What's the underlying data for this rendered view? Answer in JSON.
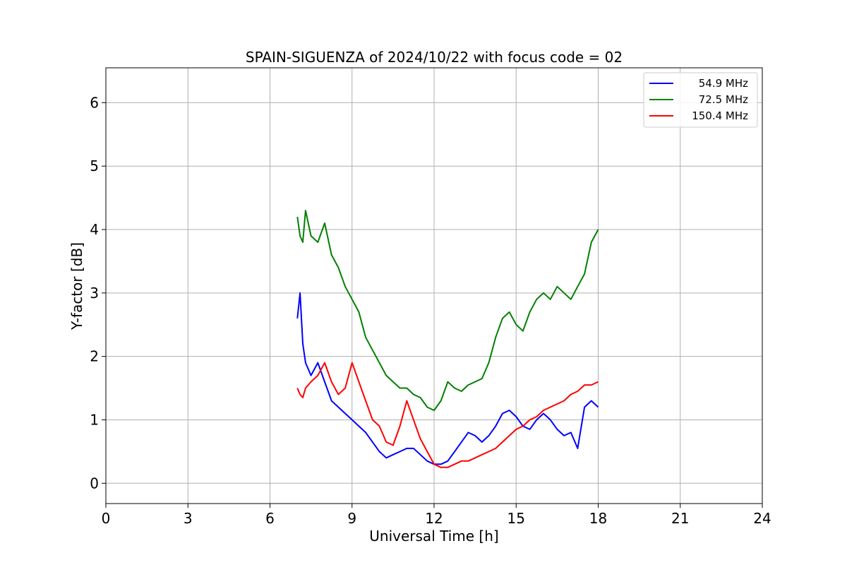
{
  "chart_data": {
    "type": "line",
    "title": "SPAIN-SIGUENZA of 2024/10/22 with focus code = 02",
    "xlabel": "Universal Time [h]",
    "ylabel": "Y-factor [dB]",
    "xlim": [
      0,
      24
    ],
    "ylim": [
      -0.32,
      6.55
    ],
    "xticks": [
      0,
      3,
      6,
      9,
      12,
      15,
      18,
      21,
      24
    ],
    "yticks": [
      0,
      1,
      2,
      3,
      4,
      5,
      6
    ],
    "grid": true,
    "legend_position": "top-right",
    "series": [
      {
        "name": "54.9 MHz",
        "color": "#0000ff",
        "x": [
          7.0,
          7.1,
          7.2,
          7.3,
          7.5,
          7.75,
          8.0,
          8.25,
          8.5,
          8.75,
          9.0,
          9.25,
          9.5,
          9.75,
          10.0,
          10.25,
          10.5,
          10.75,
          11.0,
          11.25,
          11.5,
          11.75,
          12.0,
          12.25,
          12.5,
          12.75,
          13.0,
          13.25,
          13.5,
          13.75,
          14.0,
          14.25,
          14.5,
          14.75,
          15.0,
          15.25,
          15.5,
          15.75,
          16.0,
          16.25,
          16.5,
          16.75,
          17.0,
          17.25,
          17.5,
          17.75,
          18.0
        ],
        "y": [
          2.6,
          3.0,
          2.2,
          1.9,
          1.7,
          1.9,
          1.6,
          1.3,
          1.2,
          1.1,
          1.0,
          0.9,
          0.8,
          0.65,
          0.5,
          0.4,
          0.45,
          0.5,
          0.55,
          0.55,
          0.45,
          0.35,
          0.3,
          0.3,
          0.35,
          0.5,
          0.65,
          0.8,
          0.75,
          0.65,
          0.75,
          0.9,
          1.1,
          1.15,
          1.05,
          0.9,
          0.85,
          1.0,
          1.1,
          1.0,
          0.85,
          0.75,
          0.8,
          0.55,
          1.2,
          1.3,
          1.2
        ]
      },
      {
        "name": "72.5 MHz",
        "color": "#008000",
        "x": [
          7.0,
          7.1,
          7.2,
          7.3,
          7.5,
          7.75,
          8.0,
          8.25,
          8.5,
          8.75,
          9.0,
          9.25,
          9.5,
          9.75,
          10.0,
          10.25,
          10.5,
          10.75,
          11.0,
          11.25,
          11.5,
          11.75,
          12.0,
          12.25,
          12.5,
          12.75,
          13.0,
          13.25,
          13.5,
          13.75,
          14.0,
          14.25,
          14.5,
          14.75,
          15.0,
          15.25,
          15.5,
          15.75,
          16.0,
          16.25,
          16.5,
          16.75,
          17.0,
          17.25,
          17.5,
          17.75,
          18.0
        ],
        "y": [
          4.2,
          3.9,
          3.8,
          4.3,
          3.9,
          3.8,
          4.1,
          3.6,
          3.4,
          3.1,
          2.9,
          2.7,
          2.3,
          2.1,
          1.9,
          1.7,
          1.6,
          1.5,
          1.5,
          1.4,
          1.35,
          1.2,
          1.15,
          1.3,
          1.6,
          1.5,
          1.45,
          1.55,
          1.6,
          1.65,
          1.9,
          2.3,
          2.6,
          2.7,
          2.5,
          2.4,
          2.7,
          2.9,
          3.0,
          2.9,
          3.1,
          3.0,
          2.9,
          3.1,
          3.3,
          3.8,
          4.0
        ]
      },
      {
        "name": "150.4 MHz",
        "color": "#ff0000",
        "x": [
          7.0,
          7.1,
          7.2,
          7.3,
          7.5,
          7.75,
          8.0,
          8.25,
          8.5,
          8.75,
          9.0,
          9.25,
          9.5,
          9.75,
          10.0,
          10.25,
          10.5,
          10.75,
          11.0,
          11.25,
          11.5,
          11.75,
          12.0,
          12.25,
          12.5,
          12.75,
          13.0,
          13.25,
          13.5,
          13.75,
          14.0,
          14.25,
          14.5,
          14.75,
          15.0,
          15.25,
          15.5,
          15.75,
          16.0,
          16.25,
          16.5,
          16.75,
          17.0,
          17.25,
          17.5,
          17.75,
          18.0
        ],
        "y": [
          1.5,
          1.4,
          1.35,
          1.5,
          1.6,
          1.7,
          1.9,
          1.6,
          1.4,
          1.5,
          1.9,
          1.6,
          1.3,
          1.0,
          0.9,
          0.65,
          0.6,
          0.9,
          1.3,
          1.0,
          0.7,
          0.5,
          0.3,
          0.25,
          0.25,
          0.3,
          0.35,
          0.35,
          0.4,
          0.45,
          0.5,
          0.55,
          0.65,
          0.75,
          0.85,
          0.9,
          1.0,
          1.05,
          1.15,
          1.2,
          1.25,
          1.3,
          1.4,
          1.45,
          1.55,
          1.55,
          1.6
        ]
      }
    ]
  }
}
